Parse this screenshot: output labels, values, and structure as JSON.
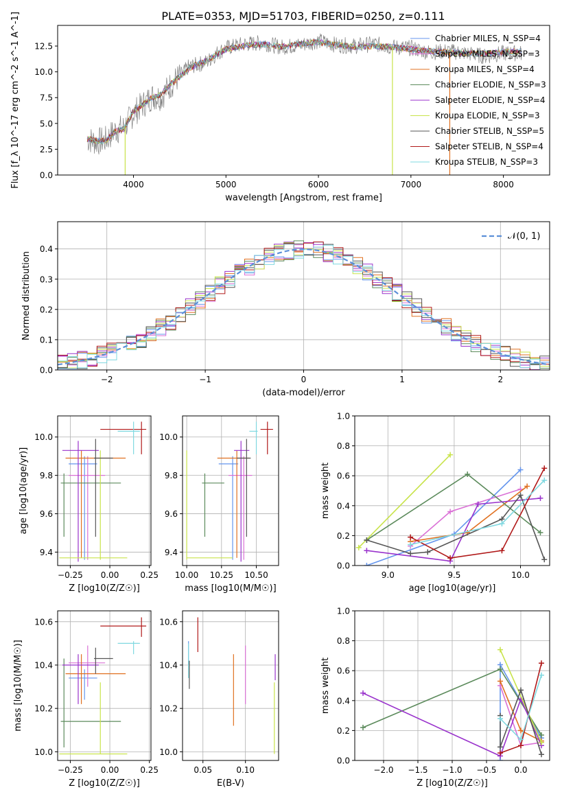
{
  "figure": {
    "title": "PLATE=0353, MJD=51703, FIBERID=0250, z=0.111"
  },
  "chart_data": [
    {
      "id": "spectrum",
      "type": "line",
      "title": "PLATE=0353, MJD=51703, FIBERID=0250, z=0.111",
      "xlabel": "wavelength [Angstrom, rest frame]",
      "ylabel": "Flux [f_λ 10^-17 erg cm^-2 s^-1 A^-1]",
      "xlim": [
        3180,
        8500
      ],
      "ylim": [
        0,
        14.5
      ],
      "xticks": [
        4000,
        5000,
        6000,
        7000,
        8000
      ],
      "yticks": [
        0.0,
        2.5,
        5.0,
        7.5,
        10.0,
        12.5
      ],
      "grid": false,
      "legend": "right",
      "observed": {
        "x": [
          3500,
          3600,
          3700,
          3800,
          3900,
          4000,
          4100,
          4200,
          4300,
          4400,
          4500,
          4600,
          4700,
          4800,
          4900,
          5000,
          5200,
          5400,
          5600,
          5800,
          6000,
          6200,
          6400,
          6600,
          6800,
          7000,
          7200,
          7400,
          7600,
          7800,
          8000,
          8200
        ],
        "y": [
          3.5,
          3.2,
          3.4,
          4.3,
          4.6,
          6.0,
          6.8,
          7.6,
          7.6,
          8.7,
          9.6,
          10.5,
          10.7,
          11.0,
          11.8,
          12.3,
          12.7,
          12.8,
          12.4,
          12.6,
          13.0,
          12.6,
          12.5,
          12.7,
          12.4,
          12.3,
          11.9,
          12.0,
          11.8,
          11.5,
          11.8,
          11.8
        ]
      },
      "model": {
        "x": [
          3500,
          3600,
          3700,
          3800,
          3900,
          4000,
          4100,
          4200,
          4300,
          4400,
          4500,
          4600,
          4700,
          4800,
          4900,
          5000,
          5200,
          5400,
          5600,
          5800,
          6000,
          6200,
          6400,
          6600,
          6800,
          7000,
          7200,
          7400,
          7600,
          7800,
          8000,
          8200
        ],
        "y": [
          3.5,
          3.3,
          3.3,
          4.2,
          4.5,
          6.2,
          6.8,
          7.5,
          7.8,
          8.8,
          9.5,
          10.3,
          10.8,
          11.1,
          11.7,
          12.2,
          12.5,
          12.7,
          12.4,
          12.7,
          12.9,
          12.6,
          12.4,
          12.5,
          12.4,
          12.2,
          12.0,
          11.9,
          11.8,
          11.8,
          11.9,
          12.0
        ]
      },
      "series": [
        {
          "name": "Chabrier MILES, N_SSP=4",
          "color": "#6495ed"
        },
        {
          "name": "Salpeter MILES, N_SSP=3",
          "color": "#da70d6"
        },
        {
          "name": "Kroupa MILES, N_SSP=4",
          "color": "#e07020"
        },
        {
          "name": "Chabrier ELODIE, N_SSP=3",
          "color": "#5b8a5b"
        },
        {
          "name": "Salpeter ELODIE, N_SSP=4",
          "color": "#9932cc"
        },
        {
          "name": "Kroupa ELODIE, N_SSP=3",
          "color": "#c8e34a"
        },
        {
          "name": "Chabrier STELIB, N_SSP=5",
          "color": "#555555"
        },
        {
          "name": "Salpeter STELIB, N_SSP=4",
          "color": "#b01818"
        },
        {
          "name": "Kroupa STELIB, N_SSP=3",
          "color": "#7fd8e0"
        }
      ],
      "drops": [
        {
          "x": 3910,
          "color": "#c8e34a"
        },
        {
          "x": 6800,
          "color": "#c8e34a"
        },
        {
          "x": 7420,
          "color": "#e07020"
        }
      ]
    },
    {
      "id": "residuals",
      "type": "line",
      "xlabel": "(data-model)/error",
      "ylabel": "Normed distribution",
      "xlim": [
        -2.5,
        2.5
      ],
      "ylim": [
        0,
        0.49
      ],
      "xticks": [
        -2,
        -1,
        0,
        1,
        2
      ],
      "yticks": [
        0.0,
        0.1,
        0.2,
        0.3,
        0.4
      ],
      "grid": true,
      "legend": "top-right",
      "reference": {
        "name": "𝒩(0, 1)",
        "color": "#5b8fd8"
      },
      "bin_width": 0.1
    },
    {
      "id": "age-vs-Z",
      "type": "scatter",
      "xlabel": "Z [log10(Z/Z☉)]",
      "ylabel": "age [log10(age/yr)]",
      "xlim": [
        -0.33,
        0.26
      ],
      "ylim": [
        9.33,
        10.11
      ],
      "xticks": [
        -0.25,
        0.0,
        0.25
      ],
      "yticks": [
        9.4,
        9.6,
        9.8,
        10.0
      ],
      "grid": true,
      "points": [
        {
          "color": "#6495ed",
          "x": -0.16,
          "y": 9.86,
          "x_err": [
            0.1,
            0.08
          ],
          "y_err": [
            0.5,
            0.04
          ]
        },
        {
          "color": "#da70d6",
          "x": -0.14,
          "y": 9.8,
          "x_err": [
            0.12,
            0.11
          ],
          "y_err": [
            0.44,
            0.1
          ]
        },
        {
          "color": "#e07020",
          "x": -0.18,
          "y": 9.89,
          "x_err": [
            0.1,
            0.28
          ],
          "y_err": [
            0.52,
            0.04
          ]
        },
        {
          "color": "#5b8a5b",
          "x": -0.29,
          "y": 9.76,
          "x_err": [
            0.02,
            0.36
          ],
          "y_err": [
            0.28,
            0.05
          ]
        },
        {
          "color": "#9932cc",
          "x": -0.2,
          "y": 9.93,
          "x_err": [
            0.1,
            0.13
          ],
          "y_err": [
            0.58,
            0.05
          ]
        },
        {
          "color": "#c8e34a",
          "x": -0.06,
          "y": 9.37,
          "x_err": [
            0.26,
            0.17
          ],
          "y_err": [
            0.01,
            0.56
          ]
        },
        {
          "color": "#555555",
          "x": -0.09,
          "y": 9.89,
          "x_err": [
            0.01,
            0.11
          ],
          "y_err": [
            0.41,
            0.1
          ]
        },
        {
          "color": "#b01818",
          "x": 0.2,
          "y": 10.04,
          "x_err": [
            0.26,
            0.03
          ],
          "y_err": [
            0.13,
            0.04
          ]
        },
        {
          "color": "#7fd8e0",
          "x": 0.15,
          "y": 10.03,
          "x_err": [
            0.1,
            0.04
          ],
          "y_err": [
            0.12,
            0.05
          ]
        }
      ]
    },
    {
      "id": "age-vs-mass",
      "type": "scatter",
      "xlabel": "mass [log10(M/M☉)]",
      "ylabel": "",
      "xlim": [
        9.97,
        10.66
      ],
      "ylim": [
        9.33,
        10.11
      ],
      "xticks": [
        10.0,
        10.25,
        10.5
      ],
      "yticks": [
        9.4,
        9.6,
        9.8,
        10.0
      ],
      "grid": true,
      "points": [
        {
          "color": "#6495ed",
          "x": 10.33,
          "y": 9.86,
          "x_err": [
            0.1,
            0.04
          ],
          "y_err": [
            0.5,
            0.04
          ]
        },
        {
          "color": "#da70d6",
          "x": 10.41,
          "y": 9.8,
          "x_err": [
            0.11,
            0.06
          ],
          "y_err": [
            0.44,
            0.1
          ]
        },
        {
          "color": "#e07020",
          "x": 10.36,
          "y": 9.89,
          "x_err": [
            0.14,
            0.09
          ],
          "y_err": [
            0.52,
            0.04
          ]
        },
        {
          "color": "#5b8a5b",
          "x": 10.13,
          "y": 9.76,
          "x_err": [
            0.02,
            0.14
          ],
          "y_err": [
            0.28,
            0.05
          ]
        },
        {
          "color": "#9932cc",
          "x": 10.39,
          "y": 9.93,
          "x_err": [
            0.05,
            0.06
          ],
          "y_err": [
            0.58,
            0.05
          ]
        },
        {
          "color": "#c8e34a",
          "x": 10.0,
          "y": 9.37,
          "x_err": [
            0.0,
            0.33
          ],
          "y_err": [
            0.01,
            0.56
          ]
        },
        {
          "color": "#555555",
          "x": 10.43,
          "y": 9.89,
          "x_err": [
            0.07,
            0.03
          ],
          "y_err": [
            0.41,
            0.1
          ]
        },
        {
          "color": "#b01818",
          "x": 10.58,
          "y": 10.04,
          "x_err": [
            0.05,
            0.04
          ],
          "y_err": [
            0.13,
            0.04
          ]
        },
        {
          "color": "#7fd8e0",
          "x": 10.5,
          "y": 10.03,
          "x_err": [
            0.05,
            0.01
          ],
          "y_err": [
            0.12,
            0.05
          ]
        }
      ]
    },
    {
      "id": "mass-weight-vs-age",
      "type": "line",
      "xlabel": "age [log10(age/yr)]",
      "ylabel": "mass weight",
      "xlim": [
        8.75,
        10.22
      ],
      "ylim": [
        0,
        1.0
      ],
      "xticks": [
        9.0,
        9.5,
        10.0
      ],
      "yticks": [
        0.0,
        0.2,
        0.4,
        0.6,
        0.8,
        1.0
      ],
      "grid": true,
      "series": [
        {
          "color": "#6495ed",
          "x": [
            8.84,
            9.5,
            10.0
          ],
          "y": [
            0.0,
            0.21,
            0.64
          ]
        },
        {
          "color": "#da70d6",
          "x": [
            9.17,
            9.47,
            10.0
          ],
          "y": [
            0.13,
            0.36,
            0.51
          ]
        },
        {
          "color": "#e07020",
          "x": [
            9.17,
            9.6,
            10.05
          ],
          "y": [
            0.16,
            0.22,
            0.53
          ]
        },
        {
          "color": "#5b8a5b",
          "x": [
            8.84,
            9.6,
            10.15
          ],
          "y": [
            0.17,
            0.61,
            0.22
          ]
        },
        {
          "color": "#9932cc",
          "x": [
            8.84,
            9.47,
            9.68,
            10.15
          ],
          "y": [
            0.1,
            0.03,
            0.41,
            0.45
          ]
        },
        {
          "color": "#c8e34a",
          "x": [
            8.78,
            9.47
          ],
          "y": [
            0.12,
            0.74
          ]
        },
        {
          "color": "#555555",
          "x": [
            8.84,
            9.17,
            9.3,
            9.86,
            10.0,
            10.18
          ],
          "y": [
            0.17,
            0.08,
            0.09,
            0.31,
            0.47,
            0.04
          ]
        },
        {
          "color": "#b01818",
          "x": [
            9.17,
            9.47,
            9.86,
            10.18
          ],
          "y": [
            0.19,
            0.05,
            0.1,
            0.65
          ]
        },
        {
          "color": "#7fd8e0",
          "x": [
            9.17,
            9.86,
            10.18
          ],
          "y": [
            0.14,
            0.28,
            0.57
          ]
        }
      ]
    },
    {
      "id": "mass-vs-Z",
      "type": "scatter",
      "xlabel": "Z [log10(Z/Z☉)]",
      "ylabel": "mass [log10(M/M☉)]",
      "xlim": [
        -0.33,
        0.26
      ],
      "ylim": [
        9.96,
        10.65
      ],
      "xticks": [
        -0.25,
        0.0,
        0.25
      ],
      "yticks": [
        10.0,
        10.2,
        10.4,
        10.6
      ],
      "grid": true,
      "points": [
        {
          "color": "#6495ed",
          "x": -0.16,
          "y": 10.34,
          "x_err": [
            0.1,
            0.08
          ],
          "y_err": [
            0.1,
            0.04
          ]
        },
        {
          "color": "#da70d6",
          "x": -0.14,
          "y": 10.41,
          "x_err": [
            0.12,
            0.11
          ],
          "y_err": [
            0.11,
            0.08
          ]
        },
        {
          "color": "#e07020",
          "x": -0.18,
          "y": 10.36,
          "x_err": [
            0.1,
            0.28
          ],
          "y_err": [
            0.14,
            0.09
          ]
        },
        {
          "color": "#5b8a5b",
          "x": -0.29,
          "y": 10.14,
          "x_err": [
            0.02,
            0.36
          ],
          "y_err": [
            0.12,
            0.29
          ]
        },
        {
          "color": "#9932cc",
          "x": -0.2,
          "y": 10.4,
          "x_err": [
            0.1,
            0.13
          ],
          "y_err": [
            0.18,
            0.05
          ]
        },
        {
          "color": "#c8e34a",
          "x": -0.06,
          "y": 9.99,
          "x_err": [
            0.26,
            0.17
          ],
          "y_err": [
            0.0,
            0.33
          ]
        },
        {
          "color": "#555555",
          "x": -0.09,
          "y": 10.43,
          "x_err": [
            0.01,
            0.11
          ],
          "y_err": [
            0.07,
            0.05
          ]
        },
        {
          "color": "#b01818",
          "x": 0.2,
          "y": 10.58,
          "x_err": [
            0.26,
            0.03
          ],
          "y_err": [
            0.05,
            0.04
          ]
        },
        {
          "color": "#7fd8e0",
          "x": 0.15,
          "y": 10.5,
          "x_err": [
            0.1,
            0.04
          ],
          "y_err": [
            0.05,
            0.01
          ]
        }
      ]
    },
    {
      "id": "mass-vs-ebv",
      "type": "scatter",
      "xlabel": "E(B-V)",
      "ylabel": "",
      "xlim": [
        0.026,
        0.139
      ],
      "ylim": [
        9.96,
        10.65
      ],
      "xticks": [
        0.05,
        0.1
      ],
      "yticks": [
        10.0,
        10.2,
        10.4,
        10.6
      ],
      "grid": true,
      "points": [
        {
          "color": "#6495ed",
          "x": 0.033,
          "y": 10.46,
          "x_err": [
            0,
            0
          ],
          "y_err": [
            0.06,
            0.05
          ]
        },
        {
          "color": "#7fd8e0",
          "x": 0.033,
          "y": 10.4,
          "x_err": [
            0,
            0
          ],
          "y_err": [
            0.06,
            0.1
          ]
        },
        {
          "color": "#555555",
          "x": 0.034,
          "y": 10.32,
          "x_err": [
            0,
            0
          ],
          "y_err": [
            0.03,
            0.1
          ]
        },
        {
          "color": "#b01818",
          "x": 0.044,
          "y": 10.58,
          "x_err": [
            0,
            0
          ],
          "y_err": [
            0.12,
            0.04
          ]
        },
        {
          "color": "#e07020",
          "x": 0.086,
          "y": 10.28,
          "x_err": [
            0,
            0
          ],
          "y_err": [
            0.16,
            0.17
          ]
        },
        {
          "color": "#da70d6",
          "x": 0.1,
          "y": 10.38,
          "x_err": [
            0,
            0
          ],
          "y_err": [
            0.16,
            0.11
          ]
        },
        {
          "color": "#9932cc",
          "x": 0.135,
          "y": 10.4,
          "x_err": [
            0,
            0
          ],
          "y_err": [
            0.07,
            0.05
          ]
        },
        {
          "color": "#c8e34a",
          "x": 0.134,
          "y": 10.12,
          "x_err": [
            0,
            0
          ],
          "y_err": [
            0.13,
            0.2
          ]
        }
      ]
    },
    {
      "id": "mass-weight-vs-Z",
      "type": "line",
      "xlabel": "Z [log10(Z/Z☉)]",
      "ylabel": "mass weight",
      "xlim": [
        -2.42,
        0.42
      ],
      "ylim": [
        0,
        1.0
      ],
      "xticks": [
        -2.0,
        -1.5,
        -1.0,
        -0.5,
        0.0
      ],
      "yticks": [
        0.0,
        0.2,
        0.4,
        0.6,
        0.8,
        1.0
      ],
      "grid": true,
      "series": [
        {
          "color": "#6495ed",
          "x": [
            -0.3,
            -0.3,
            0.3
          ],
          "y": [
            0.0,
            0.64,
            0.15
          ]
        },
        {
          "color": "#da70d6",
          "x": [
            -0.3,
            0.0,
            0.3
          ],
          "y": [
            0.5,
            0.1,
            0.12
          ]
        },
        {
          "color": "#e07020",
          "x": [
            -0.3,
            0.0,
            0.3
          ],
          "y": [
            0.53,
            0.2,
            0.13
          ]
        },
        {
          "color": "#5b8a5b",
          "x": [
            -2.3,
            -0.3,
            0.3
          ],
          "y": [
            0.22,
            0.61,
            0.17
          ]
        },
        {
          "color": "#9932cc",
          "x": [
            -2.3,
            -0.3,
            0.0,
            0.3
          ],
          "y": [
            0.45,
            0.03,
            0.41,
            0.1
          ]
        },
        {
          "color": "#c8e34a",
          "x": [
            -0.3,
            0.3
          ],
          "y": [
            0.74,
            0.12
          ]
        },
        {
          "color": "#555555",
          "x": [
            -0.3,
            -0.3,
            0.0,
            0.3
          ],
          "y": [
            0.3,
            0.09,
            0.47,
            0.04
          ]
        },
        {
          "color": "#b01818",
          "x": [
            -0.3,
            0.0,
            0.3
          ],
          "y": [
            0.05,
            0.1,
            0.65
          ]
        },
        {
          "color": "#7fd8e0",
          "x": [
            -0.3,
            0.0,
            0.3
          ],
          "y": [
            0.28,
            0.14,
            0.57
          ]
        }
      ]
    }
  ]
}
